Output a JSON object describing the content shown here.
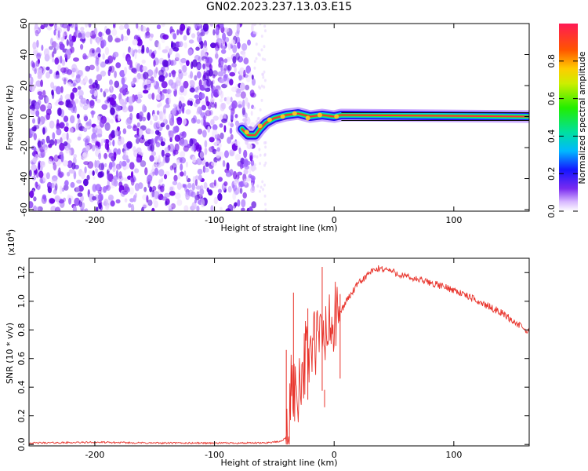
{
  "title": "GN02.2023.237.13.03.E15",
  "chart_data": [
    {
      "type": "heatmap",
      "xlabel": "Height of straight line (km)",
      "ylabel": "Frequency (Hz)",
      "xlim": [
        -255,
        163
      ],
      "ylim": [
        -61,
        60
      ],
      "xticks": [
        -200,
        -100,
        0,
        100
      ],
      "yticks": [
        -60,
        -40,
        -20,
        0,
        20,
        40,
        60
      ],
      "colorbar": {
        "label": "Normalized spectral amplitude",
        "range": [
          0,
          1
        ],
        "ticks": [
          "0.0",
          "0.2",
          "0.4",
          "0.6",
          "0.8"
        ]
      },
      "features": {
        "noise_region_x": [
          -255,
          -67
        ],
        "track": [
          [
            -77,
            -8
          ],
          [
            -72,
            -12
          ],
          [
            -66,
            -12
          ],
          [
            -62,
            -8
          ],
          [
            -57,
            -4
          ],
          [
            -50,
            -1
          ],
          [
            -40,
            1
          ],
          [
            -30,
            2
          ],
          [
            -20,
            0
          ],
          [
            -10,
            1
          ],
          [
            0,
            0
          ],
          [
            6,
            1
          ],
          [
            163,
            0
          ]
        ]
      },
      "grid": false
    },
    {
      "type": "line",
      "xlabel": "Height of straight line (km)",
      "ylabel": "SNR (10 * v/v)",
      "multiplier": "(x10^4)",
      "xlim": [
        -255,
        163
      ],
      "ylim": [
        -0.01,
        1.3
      ],
      "xticks": [
        -200,
        -100,
        0,
        100
      ],
      "yticks": [
        "0.0",
        "0.2",
        "0.4",
        "0.6",
        "0.8",
        "1.0",
        "1.2"
      ],
      "series": [
        {
          "color": "#e8332b",
          "points": [
            [
              -255,
              0.01
            ],
            [
              -200,
              0.015
            ],
            [
              -150,
              0.01
            ],
            [
              -100,
              0.01
            ],
            [
              -60,
              0.01
            ],
            [
              -45,
              0.02
            ],
            [
              -38,
              0.06
            ],
            [
              -35,
              0.5
            ],
            [
              -32,
              0.3
            ],
            [
              -28,
              0.5
            ],
            [
              -24,
              0.6
            ],
            [
              -20,
              0.65
            ],
            [
              -15,
              0.72
            ],
            [
              -10,
              0.75
            ],
            [
              -5,
              0.78
            ],
            [
              0,
              0.85
            ],
            [
              5,
              0.92
            ],
            [
              10,
              1.0
            ],
            [
              20,
              1.12
            ],
            [
              30,
              1.2
            ],
            [
              38,
              1.23
            ],
            [
              45,
              1.22
            ],
            [
              60,
              1.17
            ],
            [
              80,
              1.13
            ],
            [
              100,
              1.08
            ],
            [
              120,
              1.0
            ],
            [
              140,
              0.92
            ],
            [
              163,
              0.78
            ]
          ],
          "spikes": [
            [
              -40,
              0.66
            ],
            [
              -34,
              1.06
            ],
            [
              -22,
              0.95
            ],
            [
              -10,
              1.24
            ],
            [
              -8,
              0.26
            ],
            [
              5,
              1.05
            ]
          ]
        }
      ],
      "grid": false
    }
  ]
}
